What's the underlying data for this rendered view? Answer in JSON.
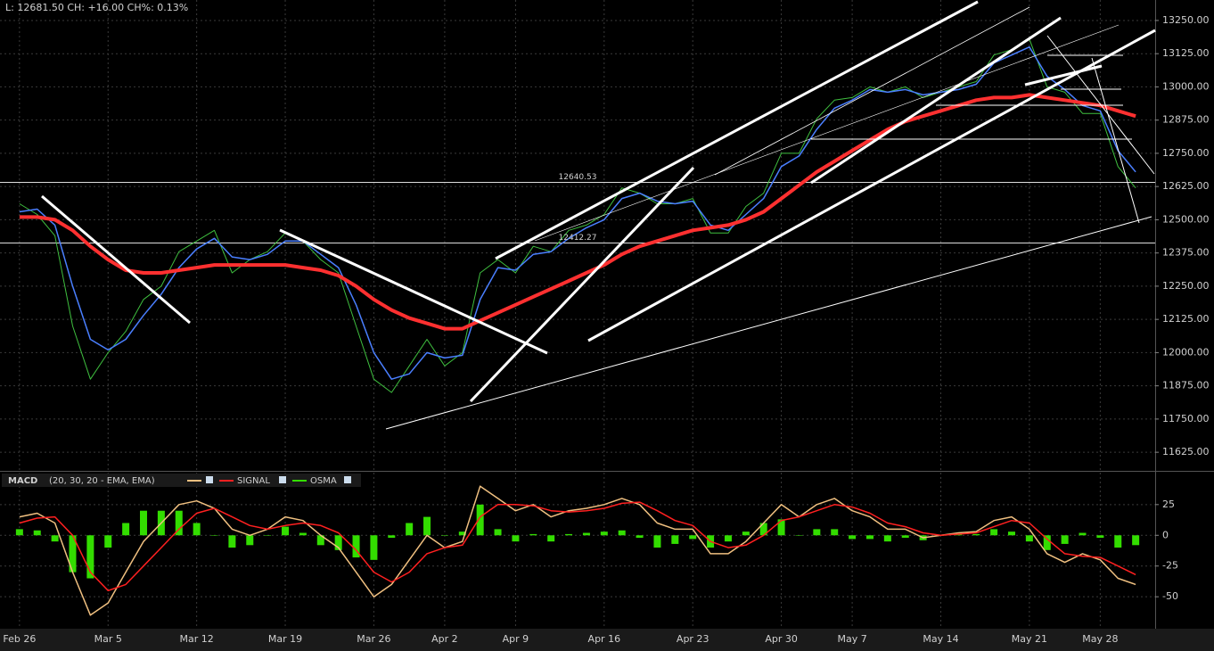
{
  "chart_data": [
    {
      "type": "line",
      "header": "L: 12681.50 CH: +16.00 CH%: 0.13%",
      "ylim": [
        11555,
        13327
      ],
      "yticks": [
        {
          "value": 13250,
          "label": "13250.00"
        },
        {
          "value": 13125,
          "label": "13125.00"
        },
        {
          "value": 13000,
          "label": "13000.00"
        },
        {
          "value": 12875,
          "label": "12875.00"
        },
        {
          "value": 12750,
          "label": "12750.00"
        },
        {
          "value": 12625,
          "label": "12625.00"
        },
        {
          "value": 12500,
          "label": "12500.00"
        },
        {
          "value": 12375,
          "label": "12375.00"
        },
        {
          "value": 12250,
          "label": "12250.00"
        },
        {
          "value": 12125,
          "label": "12125.00"
        },
        {
          "value": 12000,
          "label": "12000.00"
        },
        {
          "value": 11875,
          "label": "11875.00"
        },
        {
          "value": 11750,
          "label": "11750.00"
        },
        {
          "value": 11625,
          "label": "11625.00"
        }
      ],
      "hlines": [
        12640.53,
        12412.27
      ],
      "grid": true,
      "series": [
        {
          "color": "#3fbf3f",
          "width": 1,
          "values": [
            12560,
            12520,
            12440,
            12100,
            11900,
            12000,
            12080,
            12200,
            12250,
            12380,
            12420,
            12460,
            12300,
            12350,
            12380,
            12450,
            12420,
            12350,
            12300,
            12100,
            11900,
            11850,
            11950,
            12050,
            11950,
            12000,
            12300,
            12350,
            12300,
            12400,
            12380,
            12460,
            12480,
            12520,
            12620,
            12600,
            12560,
            12560,
            12580,
            12450,
            12450,
            12550,
            12600,
            12750,
            12750,
            12880,
            12950,
            12960,
            13000,
            12980,
            13000,
            12960,
            12980,
            13000,
            13020,
            13120,
            13140,
            13180,
            13000,
            12980,
            12900,
            12900,
            12700,
            12620
          ]
        },
        {
          "color": "#4a7fff",
          "width": 1.5,
          "values": [
            12530,
            12540,
            12480,
            12250,
            12050,
            12010,
            12050,
            12140,
            12220,
            12320,
            12390,
            12430,
            12360,
            12350,
            12370,
            12420,
            12420,
            12370,
            12320,
            12180,
            12000,
            11900,
            11920,
            12000,
            11980,
            11990,
            12200,
            12320,
            12310,
            12370,
            12380,
            12430,
            12470,
            12500,
            12580,
            12600,
            12570,
            12560,
            12570,
            12480,
            12460,
            12520,
            12580,
            12700,
            12740,
            12840,
            12920,
            12950,
            12990,
            12980,
            12990,
            12970,
            12980,
            12990,
            13010,
            13090,
            13120,
            13150,
            13040,
            12990,
            12930,
            12910,
            12760,
            12680
          ]
        },
        {
          "color": "#ff3030",
          "width": 4,
          "values": [
            12510,
            12510,
            12500,
            12460,
            12400,
            12350,
            12310,
            12300,
            12300,
            12310,
            12320,
            12330,
            12330,
            12330,
            12330,
            12330,
            12320,
            12310,
            12290,
            12250,
            12200,
            12160,
            12130,
            12110,
            12090,
            12090,
            12120,
            12150,
            12180,
            12210,
            12240,
            12270,
            12300,
            12330,
            12370,
            12400,
            12420,
            12440,
            12460,
            12470,
            12480,
            12500,
            12530,
            12580,
            12630,
            12680,
            12720,
            12760,
            12800,
            12840,
            12870,
            12890,
            12910,
            12930,
            12950,
            12960,
            12960,
            12970,
            12960,
            12950,
            12940,
            12930,
            12910,
            12890
          ]
        }
      ]
    },
    {
      "type": "macd",
      "title": "MACD",
      "subtitle": "(20, 30, 20 - EMA, EMA)",
      "ylim": [
        -76,
        51
      ],
      "yticks": [
        25,
        0,
        -25,
        -50
      ],
      "xlim": [
        -1.1,
        64.1
      ],
      "xticks": [
        {
          "value": 0,
          "label": "Feb 26"
        },
        {
          "value": 5,
          "label": "Mar 5"
        },
        {
          "value": 10,
          "label": "Mar 12"
        },
        {
          "value": 15,
          "label": "Mar 19"
        },
        {
          "value": 20,
          "label": "Mar 26"
        },
        {
          "value": 24,
          "label": "Apr 2"
        },
        {
          "value": 28,
          "label": "Apr 9"
        },
        {
          "value": 33,
          "label": "Apr 16"
        },
        {
          "value": 38,
          "label": "Apr 23"
        },
        {
          "value": 43,
          "label": "Apr 30"
        },
        {
          "value": 47,
          "label": "May 7"
        },
        {
          "value": 52,
          "label": "May 14"
        },
        {
          "value": 57,
          "label": "May 21"
        },
        {
          "value": 61,
          "label": "May 28"
        }
      ],
      "series": [
        {
          "color": "#f0c080",
          "kind": "line",
          "values": [
            15,
            18,
            10,
            -30,
            -65,
            -55,
            -30,
            -5,
            10,
            25,
            28,
            22,
            5,
            0,
            5,
            15,
            12,
            0,
            -10,
            -30,
            -50,
            -40,
            -20,
            0,
            -10,
            -5,
            40,
            30,
            20,
            25,
            15,
            20,
            22,
            25,
            30,
            25,
            10,
            5,
            5,
            -15,
            -15,
            -5,
            10,
            25,
            15,
            25,
            30,
            20,
            15,
            5,
            5,
            -2,
            0,
            2,
            3,
            12,
            15,
            5,
            -15,
            -22,
            -15,
            -20,
            -35,
            -40
          ]
        },
        {
          "name": "SIGNAL",
          "color": "#ff2020",
          "kind": "line",
          "values": [
            10,
            14,
            15,
            0,
            -30,
            -45,
            -40,
            -25,
            -10,
            5,
            18,
            22,
            15,
            8,
            5,
            8,
            10,
            8,
            2,
            -12,
            -30,
            -38,
            -30,
            -15,
            -10,
            -8,
            15,
            25,
            25,
            24,
            20,
            19,
            20,
            22,
            26,
            27,
            20,
            12,
            8,
            -5,
            -10,
            -8,
            0,
            12,
            15,
            20,
            25,
            23,
            18,
            10,
            7,
            2,
            0,
            1,
            2,
            7,
            12,
            10,
            -3,
            -15,
            -17,
            -18,
            -25,
            -32
          ]
        },
        {
          "name": "OSMA",
          "color": "#33dd00",
          "kind": "bar",
          "values": [
            5,
            4,
            -5,
            -30,
            -35,
            -10,
            10,
            20,
            20,
            20,
            10,
            0,
            -10,
            -8,
            0,
            7,
            2,
            -8,
            -12,
            -18,
            -20,
            -2,
            10,
            15,
            0,
            3,
            25,
            5,
            -5,
            1,
            -5,
            1,
            2,
            3,
            4,
            -2,
            -10,
            -7,
            -3,
            -10,
            -5,
            3,
            10,
            13,
            0,
            5,
            5,
            -3,
            -3,
            -5,
            -2,
            -4,
            0,
            1,
            1,
            5,
            3,
            -5,
            -12,
            -7,
            2,
            -2,
            -10,
            -8
          ]
        }
      ]
    }
  ]
}
